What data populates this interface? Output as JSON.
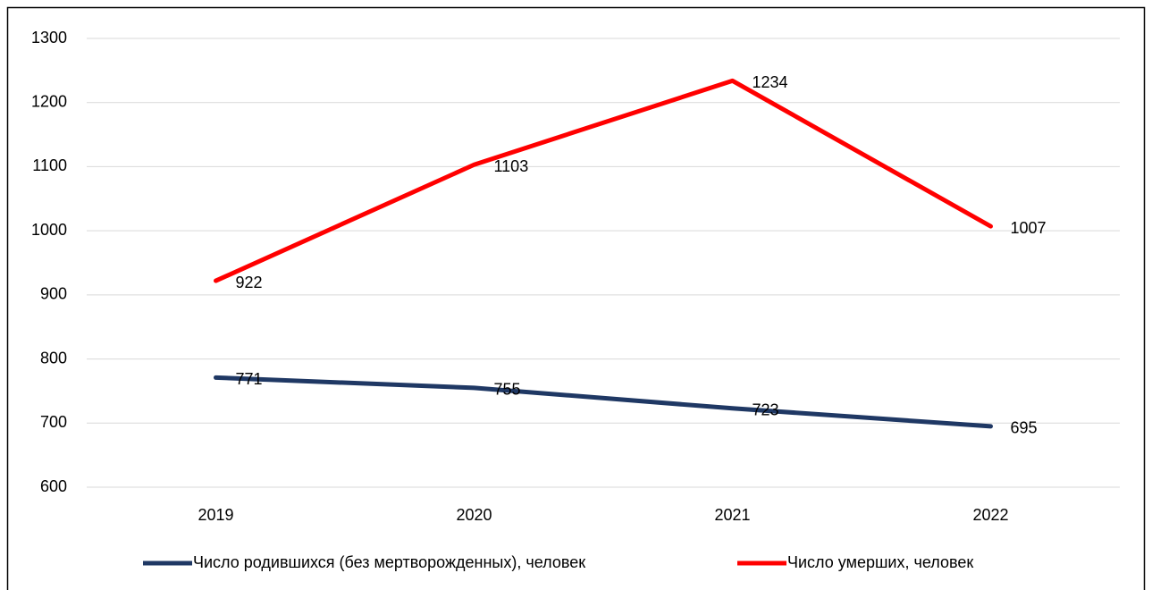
{
  "chart_data": {
    "type": "line",
    "categories": [
      "2019",
      "2020",
      "2021",
      "2022"
    ],
    "series": [
      {
        "name": "Число родившихся (без мертворожденных), человек",
        "color": "#1f3864",
        "values": [
          771,
          755,
          723,
          695
        ]
      },
      {
        "name": "Число умерших, человек",
        "color": "#ff0000",
        "values": [
          922,
          1103,
          1234,
          1007
        ]
      }
    ],
    "ylim": [
      600,
      1300
    ],
    "yticks": [
      600,
      700,
      800,
      900,
      1000,
      1100,
      1200,
      1300
    ],
    "grid": true,
    "legend": "bottom"
  }
}
